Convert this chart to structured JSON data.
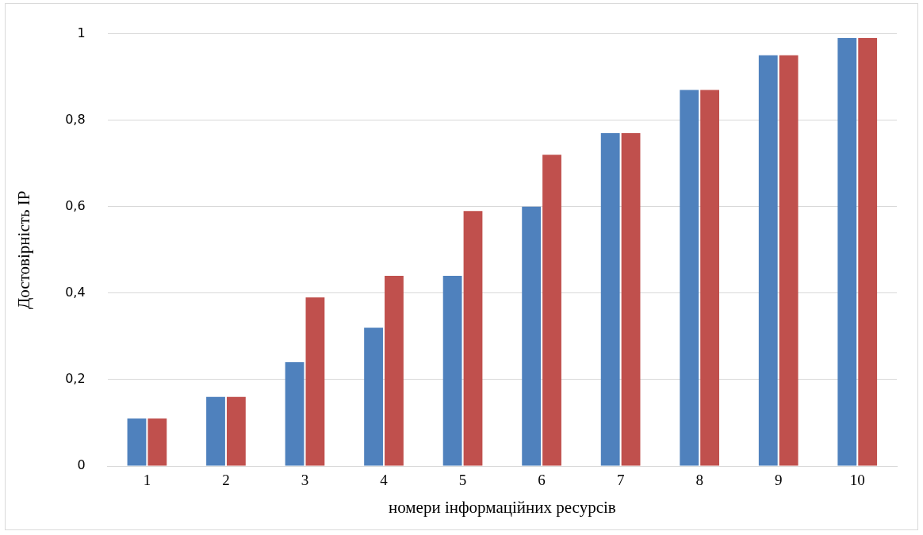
{
  "chart_data": {
    "type": "bar",
    "xlabel": "номери інформаційних ресурсів",
    "ylabel": "Достовірність ІР",
    "categories": [
      "1",
      "2",
      "3",
      "4",
      "5",
      "6",
      "7",
      "8",
      "9",
      "10"
    ],
    "series": [
      {
        "color": "#4f81bd",
        "values": [
          0.11,
          0.16,
          0.24,
          0.32,
          0.44,
          0.6,
          0.77,
          0.87,
          0.95,
          0.99
        ]
      },
      {
        "color": "#c0504d",
        "values": [
          0.11,
          0.16,
          0.39,
          0.44,
          0.59,
          0.72,
          0.77,
          0.87,
          0.95,
          0.99
        ]
      }
    ],
    "ylim": [
      0,
      1
    ],
    "yticks": [
      {
        "value": 0,
        "label": "0"
      },
      {
        "value": 0.2,
        "label": "0,2"
      },
      {
        "value": 0.4,
        "label": "0,4"
      },
      {
        "value": 0.6,
        "label": "0,6"
      },
      {
        "value": 0.8,
        "label": "0,8"
      },
      {
        "value": 1,
        "label": "1"
      }
    ],
    "grid": "y",
    "legend": false
  }
}
